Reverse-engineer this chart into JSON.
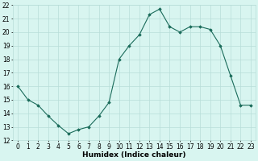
{
  "x": [
    0,
    1,
    2,
    3,
    4,
    5,
    6,
    7,
    8,
    9,
    10,
    11,
    12,
    13,
    14,
    15,
    16,
    17,
    18,
    19,
    20,
    21,
    22,
    23
  ],
  "y": [
    16.0,
    15.0,
    14.6,
    13.8,
    13.1,
    12.5,
    12.8,
    13.0,
    13.8,
    14.8,
    18.0,
    19.0,
    19.8,
    21.3,
    21.7,
    20.4,
    20.0,
    20.4,
    20.4,
    20.2,
    19.0,
    16.8,
    14.6,
    14.6
  ],
  "xlabel": "Humidex (Indice chaleur)",
  "xlim": [
    -0.5,
    23.5
  ],
  "ylim": [
    12,
    22
  ],
  "yticks": [
    12,
    13,
    14,
    15,
    16,
    17,
    18,
    19,
    20,
    21,
    22
  ],
  "xticks": [
    0,
    1,
    2,
    3,
    4,
    5,
    6,
    7,
    8,
    9,
    10,
    11,
    12,
    13,
    14,
    15,
    16,
    17,
    18,
    19,
    20,
    21,
    22,
    23
  ],
  "line_color": "#1a6b5a",
  "marker": "D",
  "marker_size": 1.8,
  "bg_color": "#d8f5f0",
  "grid_color": "#b8ddd8",
  "label_fontsize": 6.5,
  "tick_fontsize": 5.5
}
